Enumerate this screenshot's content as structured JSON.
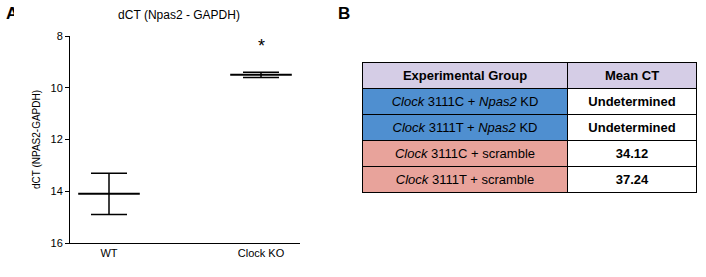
{
  "chart_data": {
    "type": "scatter",
    "marker": "line-ew",
    "title": "dCT (Npas2 - GAPDH)",
    "y_label": "dCT (NPAS2-GAPDH)",
    "categories": [
      "WT",
      "Clock KO"
    ],
    "values": [
      14.1,
      9.5
    ],
    "error": [
      0.8,
      0.1
    ],
    "color": "#000000",
    "ylim": [
      16,
      8
    ],
    "yticks": [
      8,
      10,
      12,
      14,
      16
    ],
    "grid": false,
    "annotations": [
      {
        "text": "*",
        "category": "Clock KO",
        "y": 8.85
      }
    ]
  },
  "panel_labels": [
    "A",
    "B"
  ],
  "table": {
    "header": {
      "cells": [
        "Experimental Group",
        "Mean CT"
      ],
      "color": "#d5cde6"
    },
    "rows": [
      {
        "group": [
          {
            "text": "Clock",
            "italic": true
          },
          {
            "text": " 3111C + "
          },
          {
            "text": "Npas2",
            "italic": true
          },
          {
            "text": " KD"
          }
        ],
        "value": "Undetermined",
        "color": "#4f8fd0"
      },
      {
        "group": [
          {
            "text": "Clock",
            "italic": true
          },
          {
            "text": " 3111T + "
          },
          {
            "text": "Npas2",
            "italic": true
          },
          {
            "text": " KD"
          }
        ],
        "value": "Undetermined",
        "color": "#4f8fd0"
      },
      {
        "group": [
          {
            "text": "Clock",
            "italic": true
          },
          {
            "text": " 3111C + scramble"
          }
        ],
        "value": "34.12",
        "color": "#e8a39b"
      },
      {
        "group": [
          {
            "text": "Clock",
            "italic": true
          },
          {
            "text": " 3111T + scramble"
          }
        ],
        "value": "37.24",
        "color": "#e8a39b"
      }
    ]
  }
}
